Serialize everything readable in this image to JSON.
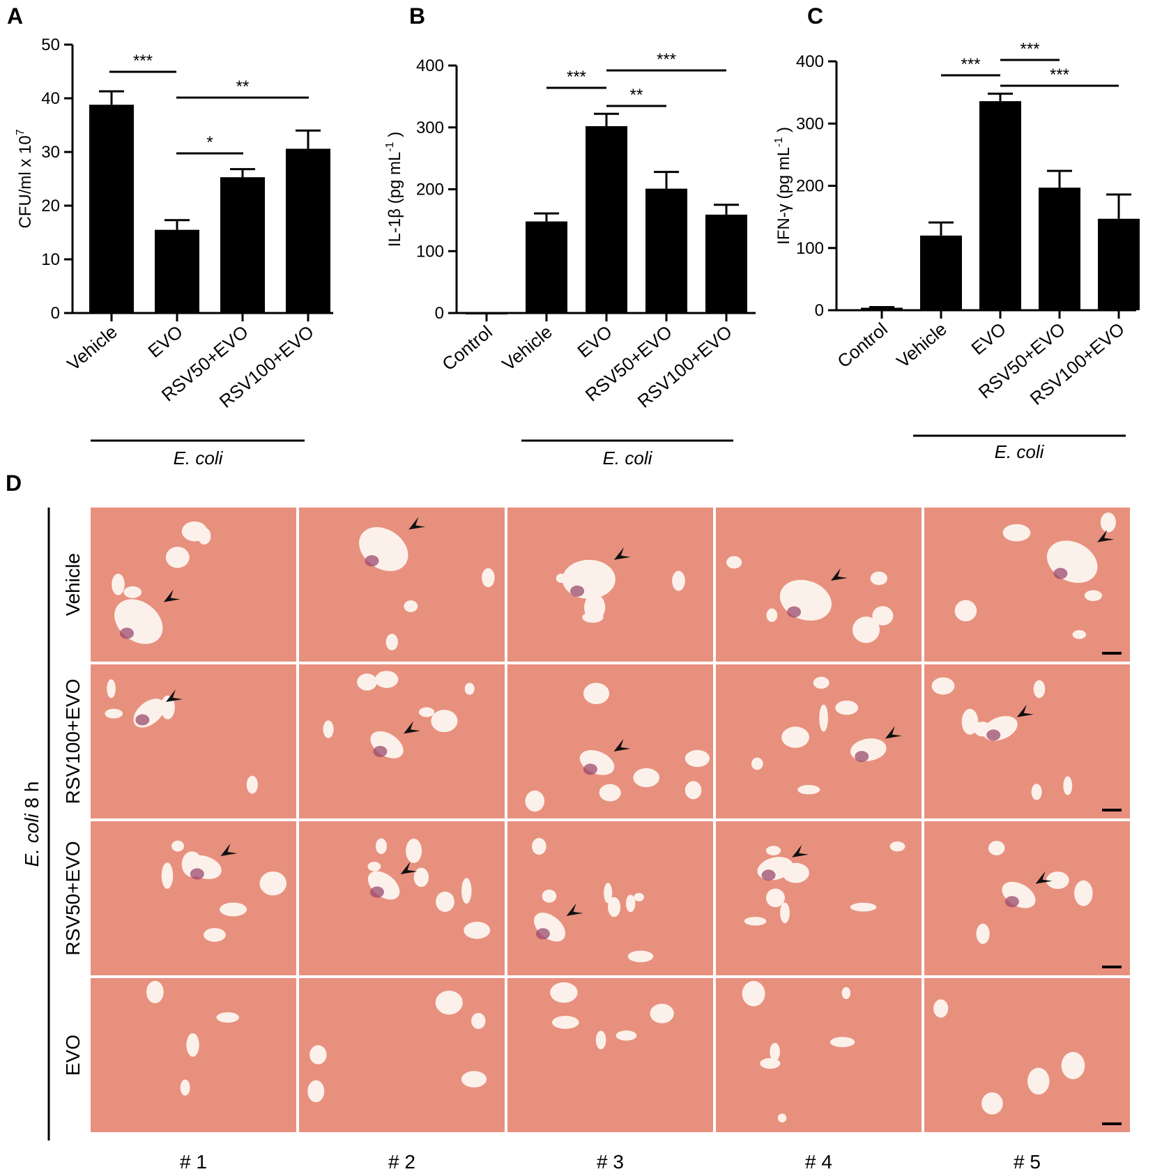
{
  "panels": {
    "A": {
      "letter": "A"
    },
    "B": {
      "letter": "B"
    },
    "C": {
      "letter": "C"
    },
    "D": {
      "letter": "D"
    }
  },
  "chart_data": [
    {
      "id": "A",
      "type": "bar",
      "title": "",
      "ylabel_main": "CFU/ml x 10",
      "ylabel_sup": "7",
      "ylim": [
        0,
        50
      ],
      "yticks": [
        "0",
        "10",
        "20",
        "30",
        "40",
        "50"
      ],
      "categories": [
        "Vehicle",
        "EVO",
        "RSV50+EVO",
        "RSV100+EVO"
      ],
      "values": [
        38.8,
        15.5,
        25.3,
        30.6
      ],
      "errors": [
        2.5,
        1.8,
        1.5,
        3.4
      ],
      "group_label": "E. coli",
      "significance": [
        {
          "from": "Vehicle",
          "to": "EVO",
          "label": "***"
        },
        {
          "from": "EVO",
          "to": "RSV100+EVO",
          "label": "**"
        },
        {
          "from": "EVO",
          "to": "RSV50+EVO",
          "label": "*"
        }
      ]
    },
    {
      "id": "B",
      "type": "bar",
      "title": "",
      "ylabel_main": "IL-1β (pg mL",
      "ylabel_sup": "-1",
      "ylabel_end": ")",
      "ylim": [
        0,
        400
      ],
      "yticks": [
        "0",
        "100",
        "200",
        "300",
        "400"
      ],
      "categories": [
        "Control",
        "Vehicle",
        "EVO",
        "RSV50+EVO",
        "RSV100+EVO"
      ],
      "values": [
        0,
        148,
        302,
        201,
        159
      ],
      "errors": [
        0,
        13,
        20,
        27,
        16
      ],
      "group_label": "E. coli",
      "significance": [
        {
          "from": "Vehicle",
          "to": "EVO",
          "label": "***"
        },
        {
          "from": "EVO",
          "to": "RSV100+EVO",
          "label": "***"
        },
        {
          "from": "EVO",
          "to": "RSV50+EVO",
          "label": "**"
        }
      ]
    },
    {
      "id": "C",
      "type": "bar",
      "title": "",
      "ylabel_main": "IFN-γ (pg mL",
      "ylabel_sup": "-1",
      "ylabel_end": ")",
      "ylim": [
        0,
        400
      ],
      "yticks": [
        "0",
        "100",
        "200",
        "300",
        "400"
      ],
      "categories": [
        "Control",
        "Vehicle",
        "EVO",
        "RSV50+EVO",
        "RSV100+EVO"
      ],
      "values": [
        4,
        120,
        336,
        197,
        147
      ],
      "errors": [
        1,
        21,
        12,
        27,
        39
      ],
      "group_label": "E. coli",
      "significance": [
        {
          "from": "Vehicle",
          "to": "EVO",
          "label": "***"
        },
        {
          "from": "EVO",
          "to": "RSV50+EVO",
          "label": "***"
        },
        {
          "from": "EVO",
          "to": "RSV100+EVO",
          "label": "***"
        }
      ]
    }
  ],
  "histology": {
    "side_label_italic": "E. coli",
    "side_label_rest": " 8 h",
    "rows": [
      "Vehicle",
      "RSV100+EVO",
      "RSV50+EVO",
      "EVO"
    ],
    "cols": [
      "# 1",
      "# 2",
      "# 3",
      "# 4",
      "# 5"
    ],
    "colors": {
      "tissue": "#e8907e",
      "vessel": "#fbf1ea",
      "infiltrate": "#9b4a6e"
    }
  }
}
